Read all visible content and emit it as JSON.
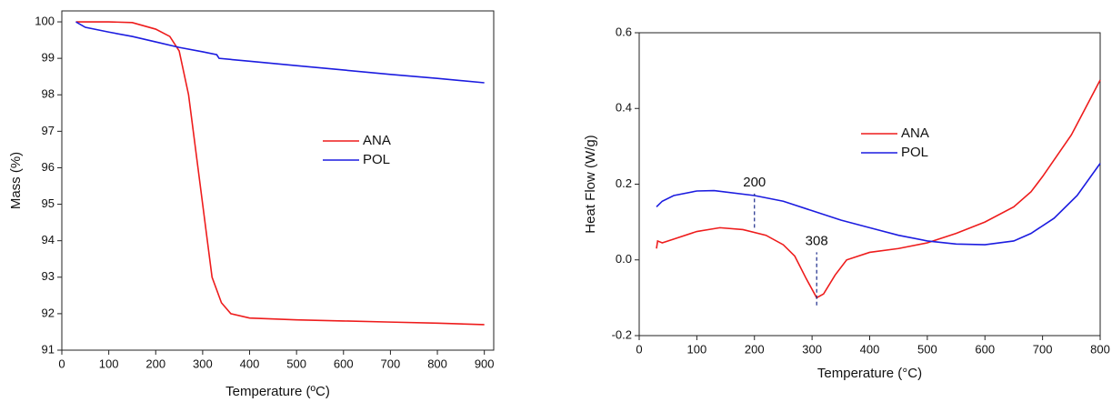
{
  "chart_data": [
    {
      "type": "line",
      "x_label": "Temperature (ºC)",
      "y_label": "Mass (%)",
      "xlim": [
        0,
        920
      ],
      "ylim": [
        91,
        100.3
      ],
      "xticks": [
        0,
        100,
        200,
        300,
        400,
        500,
        600,
        700,
        800,
        900
      ],
      "yticks": [
        91,
        92,
        93,
        94,
        95,
        96,
        97,
        98,
        99,
        100
      ],
      "legend": "center",
      "series": [
        {
          "name": "ANA",
          "color": "#ee1c1c",
          "x": [
            30,
            100,
            150,
            200,
            230,
            250,
            270,
            290,
            300,
            310,
            320,
            340,
            360,
            400,
            500,
            600,
            700,
            800,
            900
          ],
          "values": [
            100,
            100,
            99.98,
            99.8,
            99.6,
            99.2,
            98,
            96,
            95,
            94,
            93,
            92.3,
            92,
            91.88,
            91.83,
            91.8,
            91.77,
            91.74,
            91.7
          ]
        },
        {
          "name": "POL",
          "color": "#1c1ce0",
          "x": [
            30,
            50,
            100,
            150,
            200,
            250,
            300,
            330,
            335,
            400,
            500,
            600,
            700,
            800,
            900
          ],
          "values": [
            100,
            99.85,
            99.72,
            99.6,
            99.45,
            99.3,
            99.18,
            99.1,
            99.0,
            98.92,
            98.8,
            98.68,
            98.56,
            98.45,
            98.33
          ]
        }
      ]
    },
    {
      "type": "line",
      "x_label": "Temperature (°C)",
      "y_label": "Heat Flow (W/g)",
      "xlim": [
        0,
        800
      ],
      "ylim": [
        -0.2,
        0.6
      ],
      "xticks": [
        0,
        100,
        200,
        300,
        400,
        500,
        600,
        700,
        800
      ],
      "yticks": [
        -0.2,
        {
          "value": 0,
          "label": "0.0"
        },
        0.2,
        0.4,
        0.6
      ],
      "legend": "center",
      "series": [
        {
          "name": "ANA",
          "color": "#ee1c1c",
          "x": [
            30,
            32,
            40,
            60,
            100,
            140,
            180,
            220,
            250,
            270,
            290,
            308,
            320,
            340,
            360,
            400,
            450,
            500,
            550,
            600,
            650,
            680,
            700,
            750,
            800
          ],
          "values": [
            0.03,
            0.05,
            0.045,
            0.055,
            0.075,
            0.085,
            0.08,
            0.065,
            0.04,
            0.01,
            -0.05,
            -0.1,
            -0.09,
            -0.04,
            0.0,
            0.02,
            0.03,
            0.045,
            0.07,
            0.1,
            0.14,
            0.18,
            0.22,
            0.33,
            0.475
          ]
        },
        {
          "name": "POL",
          "color": "#1c1ce0",
          "x": [
            30,
            40,
            60,
            100,
            130,
            200,
            250,
            300,
            350,
            400,
            450,
            500,
            550,
            600,
            650,
            680,
            720,
            760,
            800
          ],
          "values": [
            0.14,
            0.155,
            0.17,
            0.182,
            0.183,
            0.17,
            0.155,
            0.13,
            0.105,
            0.085,
            0.065,
            0.05,
            0.042,
            0.04,
            0.05,
            0.07,
            0.11,
            0.17,
            0.255
          ]
        }
      ],
      "annotations": [
        {
          "text": "200",
          "x": 200,
          "y": [
            0.085,
            0.175
          ],
          "color": "#1a2a8a"
        },
        {
          "text": "308",
          "x": 308,
          "y": [
            -0.12,
            0.02
          ],
          "color": "#1a2a8a"
        }
      ]
    }
  ]
}
